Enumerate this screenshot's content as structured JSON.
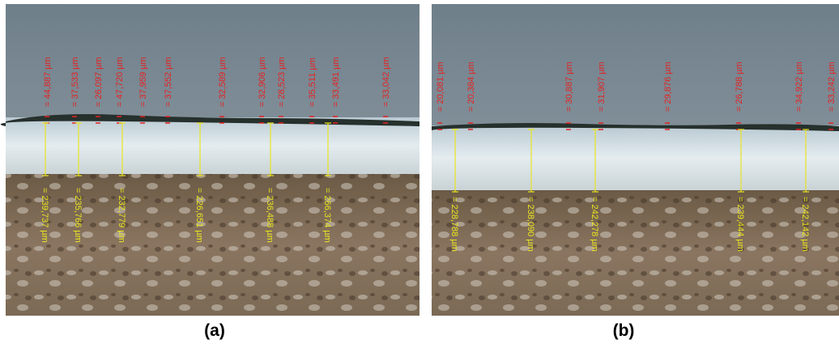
{
  "panels": [
    {
      "caption": "(a)",
      "thickness_labels": [
        "= 44,887 µm",
        "= 37,533 µm",
        "= 26,097 µm",
        "= 47,720 µm",
        "= 37,959 µm",
        "= 37,552 µm",
        "= 32,589 µm",
        "= 32,906 µm",
        "= 28,523 µm",
        "= 35,511 µm",
        "= 33,491 µm",
        "= 33,042 µm"
      ],
      "layer_labels": [
        "= 239,737 µm",
        "= 235,766 µm",
        "= 232,779 µm",
        "= 226,651 µm",
        "= 236,488 µm",
        "= 266,374 µm"
      ]
    },
    {
      "caption": "(b)",
      "thickness_labels": [
        "= 20,081 µm",
        "= 20,384 µm",
        "= 30,887 µm",
        "= 31,907 µm",
        "= 29,876 µm",
        "= 26,788 µm",
        "= 34,922 µm",
        "= 33,242 µm"
      ],
      "layer_labels": [
        "= 228,788 µm",
        "= 238,090 µm",
        "= 242,278 µm",
        "= 239,444 µm",
        "= 242,142 µm"
      ]
    }
  ]
}
